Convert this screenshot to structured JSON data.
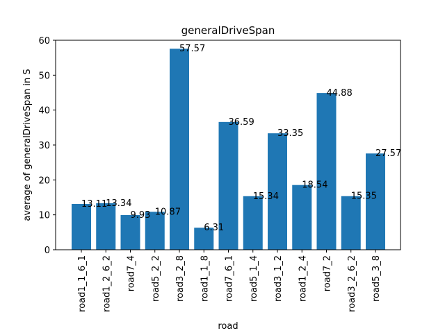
{
  "chart_data": {
    "type": "bar",
    "title": "generalDriveSpan",
    "xlabel": "road",
    "ylabel": "average of generalDriveSpan in S",
    "categories": [
      "road1_1_6_1",
      "road1_2_6_2",
      "road7_4",
      "road5_2_2",
      "road3_2_8",
      "road1_1_8",
      "road7_6_1",
      "road5_1_4",
      "road3_1_2",
      "road1_2_4",
      "road7_2",
      "road3_2_6_2",
      "road5_3_8"
    ],
    "values": [
      13.11,
      13.34,
      9.93,
      10.87,
      57.57,
      6.31,
      36.59,
      15.34,
      33.35,
      18.54,
      44.88,
      15.35,
      27.57
    ],
    "value_labels": [
      "13.11",
      "13.34",
      "9.93",
      "10.87",
      "57.57",
      "6.31",
      "36.59",
      "15.34",
      "33.35",
      "18.54",
      "44.88",
      "15.35",
      "27.57"
    ],
    "ylim": [
      0,
      60
    ],
    "yticks": [
      0,
      10,
      20,
      30,
      40,
      50,
      60
    ],
    "ytick_labels": [
      "0",
      "10",
      "20",
      "30",
      "40",
      "50",
      "60"
    ],
    "bar_color": "#1f77b4",
    "grid": false,
    "legend": "none"
  }
}
